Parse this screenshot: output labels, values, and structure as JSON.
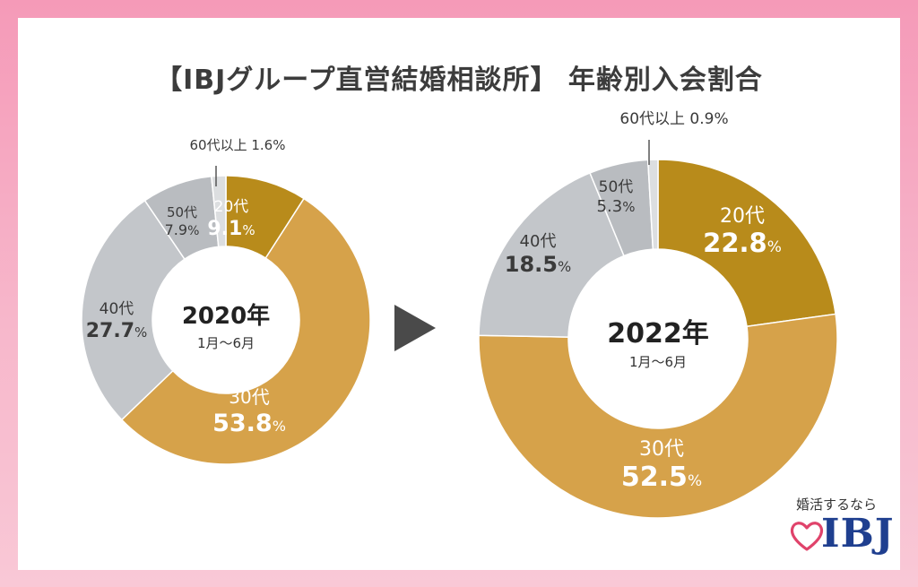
{
  "title": "【IBJグループ直営結婚相談所】 年齢別入会割合",
  "arrow_icon": "right-triangle-icon",
  "chart_data": [
    {
      "type": "pie",
      "donut": true,
      "center_title": "2020年",
      "center_subtitle": "1月～6月",
      "slices": [
        {
          "label": "20代",
          "value": 9.1,
          "display": "9.1",
          "color": "#b88b1b"
        },
        {
          "label": "30代",
          "value": 53.8,
          "display": "53.8",
          "color": "#d6a24a"
        },
        {
          "label": "40代",
          "value": 27.7,
          "display": "27.7",
          "color": "#c3c6ca"
        },
        {
          "label": "50代",
          "value": 7.9,
          "display": "7.9",
          "color": "#b9bcc0"
        },
        {
          "label": "60代以上",
          "value": 1.6,
          "display": "1.6",
          "color": "#dcdee0"
        }
      ]
    },
    {
      "type": "pie",
      "donut": true,
      "center_title": "2022年",
      "center_subtitle": "1月～6月",
      "slices": [
        {
          "label": "20代",
          "value": 22.8,
          "display": "22.8",
          "color": "#b88b1b"
        },
        {
          "label": "30代",
          "value": 52.5,
          "display": "52.5",
          "color": "#d6a24a"
        },
        {
          "label": "40代",
          "value": 18.5,
          "display": "18.5",
          "color": "#c3c6ca"
        },
        {
          "label": "50代",
          "value": 5.3,
          "display": "5.3",
          "color": "#b9bcc0"
        },
        {
          "label": "60代以上",
          "value": 0.9,
          "display": "0.9",
          "color": "#dcdee0"
        }
      ]
    }
  ],
  "percent_symbol": "%",
  "brand": {
    "tagline": "婚活するなら",
    "logo": "IBJ",
    "heart_icon": "heart-outline-icon"
  }
}
